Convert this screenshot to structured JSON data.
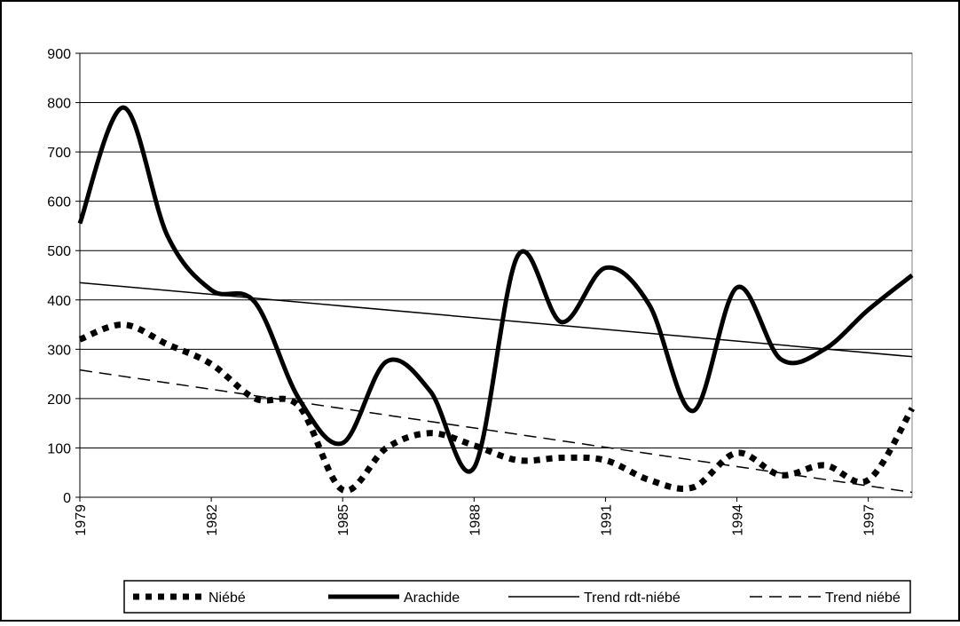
{
  "chart_data": {
    "type": "line",
    "x": [
      1979,
      1980,
      1981,
      1982,
      1983,
      1984,
      1985,
      1986,
      1987,
      1988,
      1989,
      1990,
      1991,
      1992,
      1993,
      1994,
      1995,
      1996,
      1997,
      1998
    ],
    "series": [
      {
        "name": "Niébé",
        "color": "#000000",
        "style": "dotted",
        "width": 7,
        "smooth": true,
        "values": [
          320,
          350,
          310,
          270,
          200,
          185,
          15,
          100,
          130,
          105,
          75,
          80,
          75,
          35,
          20,
          90,
          45,
          65,
          35,
          180
        ]
      },
      {
        "name": "Arachide",
        "color": "#000000",
        "style": "solid",
        "width": 5,
        "smooth": true,
        "values": [
          555,
          790,
          530,
          420,
          395,
          200,
          110,
          275,
          215,
          60,
          490,
          355,
          465,
          390,
          175,
          425,
          280,
          300,
          380,
          450
        ]
      },
      {
        "name": "Trend rdt-niébé",
        "color": "#000000",
        "style": "solid",
        "width": 1.5,
        "smooth": false,
        "values": [
          435,
          null,
          null,
          null,
          null,
          null,
          null,
          null,
          null,
          null,
          null,
          null,
          null,
          null,
          null,
          null,
          null,
          null,
          null,
          285
        ]
      },
      {
        "name": "Trend niébé",
        "color": "#000000",
        "style": "dashed",
        "width": 1.5,
        "smooth": false,
        "values": [
          258,
          null,
          null,
          null,
          null,
          null,
          null,
          null,
          null,
          null,
          null,
          null,
          null,
          null,
          null,
          null,
          null,
          null,
          null,
          10
        ]
      }
    ],
    "xlim": [
      1979,
      1998
    ],
    "xticks": [
      1979,
      1982,
      1985,
      1988,
      1991,
      1994,
      1997
    ],
    "ylim": [
      0,
      900
    ],
    "yticks": [
      0,
      100,
      200,
      300,
      400,
      500,
      600,
      700,
      800,
      900
    ],
    "grid": true,
    "legend": "bottom"
  }
}
